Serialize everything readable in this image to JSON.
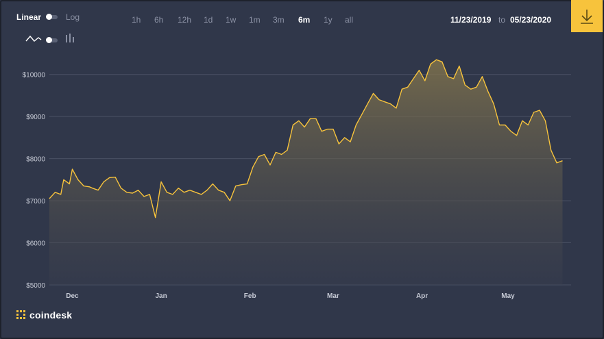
{
  "toolbar": {
    "scale_linear": "Linear",
    "scale_log": "Log",
    "scale_selected": "Linear",
    "ranges": [
      "1h",
      "6h",
      "12h",
      "1d",
      "1w",
      "1m",
      "3m",
      "6m",
      "1y",
      "all"
    ],
    "active_range": "6m",
    "date_from": "11/23/2019",
    "date_to_label": "to",
    "date_to": "05/23/2020",
    "chart_style_icons": [
      "line-chart-icon",
      "bar-chart-icon"
    ],
    "download_icon": "download-icon"
  },
  "brand": {
    "name": "coindesk",
    "icon": "coindesk-logo-icon"
  },
  "colors": {
    "line": "#f7c33c",
    "grid": "#4a5164",
    "background": "#30374a",
    "accent": "#f7c33c"
  },
  "chart_data": {
    "type": "area",
    "grid": true,
    "x_tick_labels": [
      "Dec",
      "Jan",
      "Feb",
      "Mar",
      "Apr",
      "May"
    ],
    "x_tick_dates": [
      "2019-12-01",
      "2020-01-01",
      "2020-02-01",
      "2020-03-01",
      "2020-04-01",
      "2020-05-01"
    ],
    "x_range": [
      "2019-11-23",
      "2020-05-23"
    ],
    "y_tick_labels": [
      "$5000",
      "$6000",
      "$7000",
      "$8000",
      "$9000",
      "$10000"
    ],
    "y_ticks": [
      5000,
      6000,
      7000,
      8000,
      9000,
      10000
    ],
    "ylim": [
      5000,
      10500
    ],
    "series": [
      {
        "values": [
          [
            "2019-11-23",
            7050
          ],
          [
            "2019-11-25",
            7200
          ],
          [
            "2019-11-27",
            7150
          ],
          [
            "2019-11-28",
            7500
          ],
          [
            "2019-11-30",
            7400
          ],
          [
            "2019-12-01",
            7750
          ],
          [
            "2019-12-03",
            7500
          ],
          [
            "2019-12-05",
            7350
          ],
          [
            "2019-12-07",
            7330
          ],
          [
            "2019-12-08",
            7300
          ],
          [
            "2019-12-10",
            7250
          ],
          [
            "2019-12-12",
            7450
          ],
          [
            "2019-12-14",
            7550
          ],
          [
            "2019-12-16",
            7560
          ],
          [
            "2019-12-18",
            7300
          ],
          [
            "2019-12-20",
            7200
          ],
          [
            "2019-12-22",
            7180
          ],
          [
            "2019-12-24",
            7250
          ],
          [
            "2019-12-26",
            7100
          ],
          [
            "2019-12-28",
            7150
          ],
          [
            "2019-12-30",
            6600
          ],
          [
            "2020-01-01",
            7450
          ],
          [
            "2020-01-03",
            7200
          ],
          [
            "2020-01-05",
            7150
          ],
          [
            "2020-01-07",
            7300
          ],
          [
            "2020-01-09",
            7200
          ],
          [
            "2020-01-11",
            7250
          ],
          [
            "2020-01-13",
            7200
          ],
          [
            "2020-01-15",
            7150
          ],
          [
            "2020-01-17",
            7250
          ],
          [
            "2020-01-19",
            7400
          ],
          [
            "2020-01-21",
            7250
          ],
          [
            "2020-01-23",
            7200
          ],
          [
            "2020-01-25",
            7000
          ],
          [
            "2020-01-27",
            7350
          ],
          [
            "2020-01-29",
            7380
          ],
          [
            "2020-01-31",
            7400
          ],
          [
            "2020-02-02",
            7800
          ],
          [
            "2020-02-04",
            8050
          ],
          [
            "2020-02-06",
            8100
          ],
          [
            "2020-02-08",
            7850
          ],
          [
            "2020-02-10",
            8150
          ],
          [
            "2020-02-12",
            8100
          ],
          [
            "2020-02-14",
            8200
          ],
          [
            "2020-02-16",
            8800
          ],
          [
            "2020-02-18",
            8900
          ],
          [
            "2020-02-20",
            8750
          ],
          [
            "2020-02-22",
            8950
          ],
          [
            "2020-02-24",
            8950
          ],
          [
            "2020-02-26",
            8650
          ],
          [
            "2020-02-28",
            8700
          ],
          [
            "2020-03-01",
            8700
          ],
          [
            "2020-03-03",
            8350
          ],
          [
            "2020-03-05",
            8500
          ],
          [
            "2020-03-07",
            8400
          ],
          [
            "2020-03-09",
            8800
          ],
          [
            "2020-03-11",
            9050
          ],
          [
            "2020-03-13",
            9300
          ],
          [
            "2020-03-15",
            9550
          ],
          [
            "2020-03-17",
            9400
          ],
          [
            "2020-03-19",
            9350
          ],
          [
            "2020-03-21",
            9300
          ],
          [
            "2020-03-23",
            9200
          ],
          [
            "2020-03-25",
            9650
          ],
          [
            "2020-03-27",
            9700
          ],
          [
            "2020-03-29",
            9900
          ],
          [
            "2020-03-31",
            10100
          ],
          [
            "2020-04-02",
            9850
          ],
          [
            "2020-04-04",
            10250
          ],
          [
            "2020-04-06",
            10350
          ],
          [
            "2020-04-08",
            10300
          ],
          [
            "2020-04-10",
            9950
          ],
          [
            "2020-04-12",
            9900
          ],
          [
            "2020-04-14",
            10200
          ],
          [
            "2020-04-16",
            9750
          ],
          [
            "2020-04-18",
            9650
          ],
          [
            "2020-04-20",
            9700
          ],
          [
            "2020-04-22",
            9950
          ],
          [
            "2020-04-24",
            9600
          ],
          [
            "2020-04-26",
            9300
          ],
          [
            "2020-04-28",
            8800
          ],
          [
            "2020-04-30",
            8800
          ],
          [
            "2020-05-02",
            8650
          ],
          [
            "2020-05-04",
            8550
          ],
          [
            "2020-05-06",
            8900
          ],
          [
            "2020-05-08",
            8800
          ],
          [
            "2020-05-10",
            9100
          ],
          [
            "2020-05-12",
            9150
          ],
          [
            "2020-05-14",
            8900
          ],
          [
            "2020-05-16",
            8200
          ],
          [
            "2020-05-18",
            7900
          ],
          [
            "2020-05-20",
            7950
          ]
        ]
      }
    ]
  }
}
